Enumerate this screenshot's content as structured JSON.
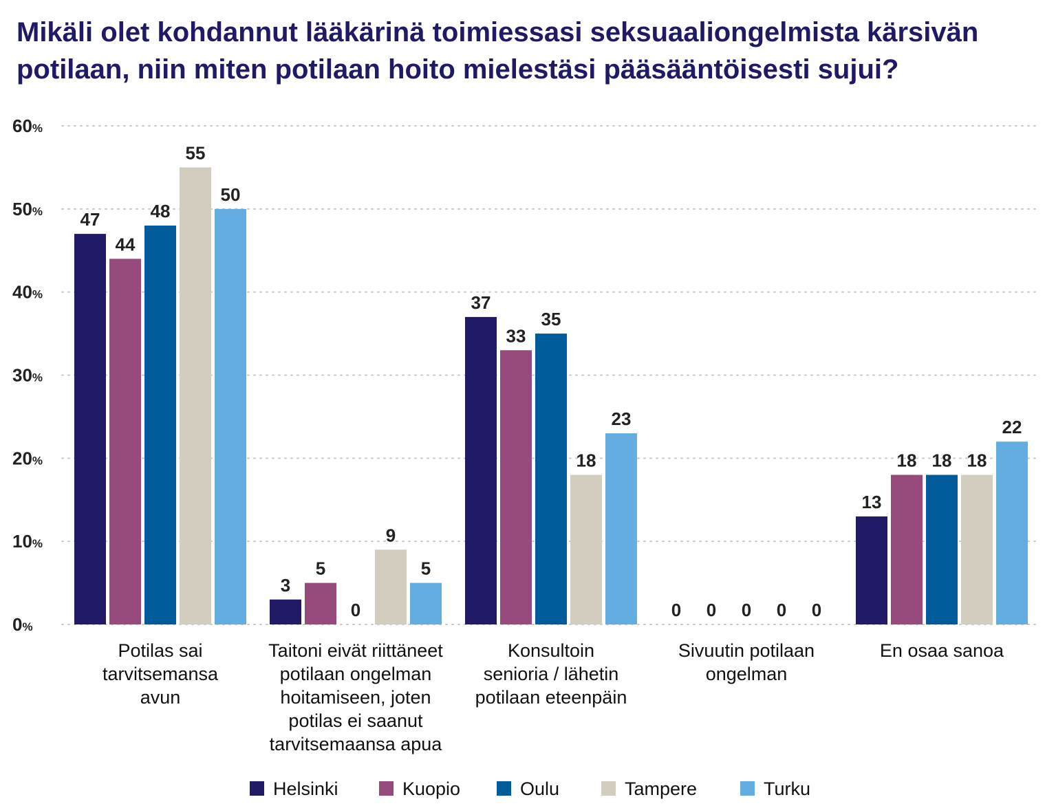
{
  "chart_data": {
    "type": "bar",
    "title": "Mikäli olet kohdannut lääkärinä toimiessasi seksuaaliongelmista kärsivän potilaan, niin miten potilaan hoito mielestäsi pääsääntöisesti sujui?",
    "categories": [
      "Potilas sai tarvitsemansa avun",
      "Taitoni eivät riittäneet potilaan ongelman hoitamiseen, joten potilas ei saanut tarvitsemaansa apua",
      "Konsultoin senioria / lähetin potilaan eteenpäin",
      "Sivuutin potilaan ongelman",
      "En osaa sanoa"
    ],
    "category_lines": [
      [
        "Potilas sai",
        "tarvitsemansa",
        "avun"
      ],
      [
        "Taitoni eivät riittäneet",
        "potilaan ongelman",
        "hoitamiseen, joten",
        "potilas ei saanut",
        "tarvitsemaansa apua"
      ],
      [
        "Konsultoin",
        "senioria / lähetin",
        "potilaan eteenpäin"
      ],
      [
        "Sivuutin potilaan",
        "ongelman"
      ],
      [
        "En osaa sanoa"
      ]
    ],
    "series": [
      {
        "name": "Helsinki",
        "color": "#211a66",
        "values": [
          47,
          3,
          37,
          0,
          13
        ]
      },
      {
        "name": "Kuopio",
        "color": "#974b7c",
        "values": [
          44,
          5,
          33,
          0,
          18
        ]
      },
      {
        "name": "Oulu",
        "color": "#005b9a",
        "values": [
          48,
          0,
          35,
          0,
          18
        ]
      },
      {
        "name": "Tampere",
        "color": "#d3cdbf",
        "values": [
          55,
          9,
          18,
          0,
          18
        ]
      },
      {
        "name": "Turku",
        "color": "#64ade0",
        "values": [
          50,
          5,
          23,
          0,
          22
        ]
      }
    ],
    "ylim": [
      0,
      60
    ],
    "yticks": [
      "0",
      "10",
      "20",
      "30",
      "40",
      "50",
      "60"
    ],
    "ytick_suffix": "%",
    "grid": true,
    "legend_position": "bottom-center"
  }
}
